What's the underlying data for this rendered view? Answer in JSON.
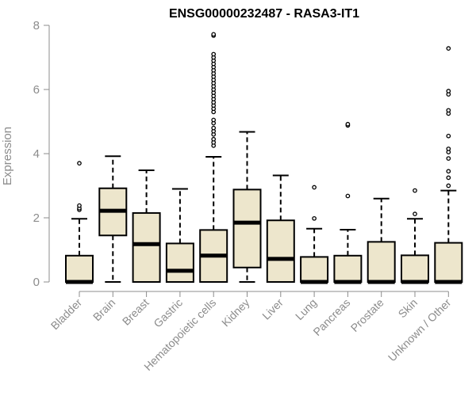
{
  "chart_data": {
    "type": "box",
    "title": "ENSG00000232487 - RASA3-IT1",
    "xlabel": "",
    "ylabel": "Expression",
    "ylim": [
      0,
      8
    ],
    "yticks": [
      "0",
      "2",
      "4",
      "6",
      "8"
    ],
    "categories": [
      "Bladder",
      "Brain",
      "Breast",
      "Gastric",
      "Hematopoietic cells",
      "Kidney",
      "Liver",
      "Lung",
      "Pancreas",
      "Prostate",
      "Skin",
      "Unknown / Other"
    ],
    "box_color": "#ede6cc",
    "boxes": [
      {
        "min": 0,
        "q1": 0,
        "median": 0,
        "q3": 0.82,
        "max": 1.97,
        "outliers": [
          2.25,
          2.3,
          2.38,
          3.7
        ]
      },
      {
        "min": 0,
        "q1": 1.45,
        "median": 2.22,
        "q3": 2.92,
        "max": 3.92,
        "outliers": []
      },
      {
        "min": 0,
        "q1": 0,
        "median": 1.18,
        "q3": 2.15,
        "max": 3.48,
        "outliers": []
      },
      {
        "min": 0,
        "q1": 0,
        "median": 0.35,
        "q3": 1.2,
        "max": 2.9,
        "outliers": []
      },
      {
        "min": 0,
        "q1": 0,
        "median": 0.82,
        "q3": 1.62,
        "max": 3.9,
        "outliers": [
          4.25,
          4.35,
          4.45,
          4.6,
          4.7,
          4.8,
          4.95,
          5.05,
          5.3,
          5.4,
          5.5,
          5.6,
          5.7,
          5.8,
          5.9,
          6.0,
          6.1,
          6.2,
          6.3,
          6.4,
          6.5,
          6.6,
          6.7,
          6.8,
          6.9,
          7.0,
          7.1,
          7.68,
          7.72
        ]
      },
      {
        "min": 0,
        "q1": 0.45,
        "median": 1.85,
        "q3": 2.88,
        "max": 4.68,
        "outliers": []
      },
      {
        "min": 0,
        "q1": 0,
        "median": 0.72,
        "q3": 1.92,
        "max": 3.32,
        "outliers": []
      },
      {
        "min": 0,
        "q1": 0,
        "median": 0,
        "q3": 0.78,
        "max": 1.66,
        "outliers": [
          1.98,
          2.95
        ]
      },
      {
        "min": 0,
        "q1": 0,
        "median": 0,
        "q3": 0.82,
        "max": 1.63,
        "outliers": [
          2.68,
          4.88,
          4.92
        ]
      },
      {
        "min": 0,
        "q1": 0,
        "median": 0,
        "q3": 1.25,
        "max": 2.6,
        "outliers": []
      },
      {
        "min": 0,
        "q1": 0,
        "median": 0,
        "q3": 0.83,
        "max": 1.97,
        "outliers": [
          2.12,
          2.85
        ]
      },
      {
        "min": 0,
        "q1": 0,
        "median": 0,
        "q3": 1.22,
        "max": 2.85,
        "outliers": [
          3.0,
          3.25,
          3.45,
          3.85,
          4.05,
          4.15,
          4.55,
          5.25,
          5.35,
          5.85,
          5.95,
          7.28
        ]
      }
    ]
  }
}
